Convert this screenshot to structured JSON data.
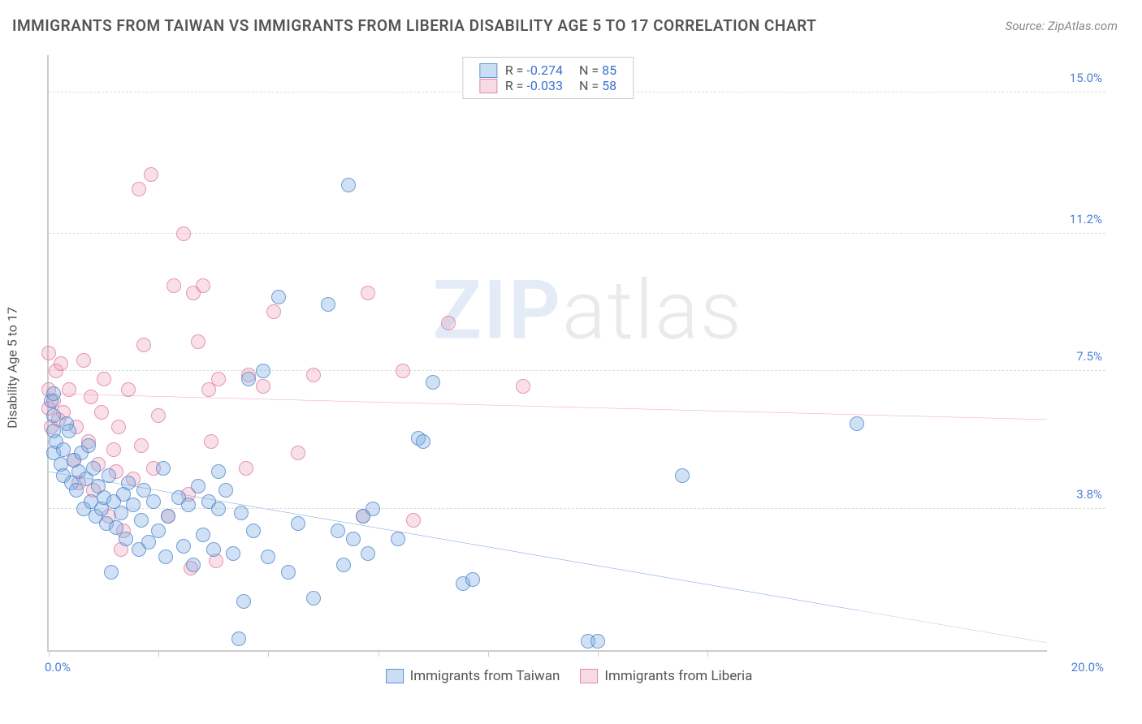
{
  "header": {
    "title": "IMMIGRANTS FROM TAIWAN VS IMMIGRANTS FROM LIBERIA DISABILITY AGE 5 TO 17 CORRELATION CHART",
    "source": "Source: ZipAtlas.com"
  },
  "watermark": {
    "zip": "ZIP",
    "atlas": "atlas"
  },
  "chart": {
    "type": "scatter",
    "ylabel": "Disability Age 5 to 17",
    "xlim": [
      0,
      20
    ],
    "ylim": [
      0,
      16
    ],
    "y_ticks": [
      3.8,
      7.5,
      11.2,
      15.0
    ],
    "y_tick_labels": [
      "3.8%",
      "7.5%",
      "11.2%",
      "15.0%"
    ],
    "x_tick_positions": [
      0,
      2.2,
      4.4,
      6.6,
      8.8,
      11.0,
      13.2
    ],
    "x_min_label": "0.0%",
    "x_max_label": "20.0%",
    "background_color": "#ffffff",
    "grid_color": "#dddddd",
    "colors": {
      "series_a_fill": "rgba(120,170,225,0.35)",
      "series_a_stroke": "#4a82c8",
      "series_b_fill": "rgba(235,150,175,0.30)",
      "series_b_stroke": "#dc6e96",
      "trend_a": "#2e6fd0",
      "trend_b": "#e37aa0",
      "axis_label": "#4a7fd6"
    },
    "marker_radius": 9,
    "trend_lines": {
      "a": {
        "y_at_xmin": 4.8,
        "y_at_xmax": 0.2,
        "solid_until_x": 16.2
      },
      "b": {
        "y_at_xmin": 6.9,
        "y_at_xmax": 6.2,
        "solid_until_x": 20.0
      }
    },
    "top_legend": {
      "rows": [
        {
          "swatch": "a",
          "r_label": "R = ",
          "r_value": "-0.274",
          "n_label": "N = ",
          "n_value": "85"
        },
        {
          "swatch": "b",
          "r_label": "R = ",
          "r_value": "-0.033",
          "n_label": "N = ",
          "n_value": "58"
        }
      ]
    },
    "bottom_legend": {
      "a": "Immigrants from Taiwan",
      "b": "Immigrants from Liberia"
    },
    "series_a": [
      [
        0.05,
        6.7
      ],
      [
        0.1,
        6.3
      ],
      [
        0.1,
        5.9
      ],
      [
        0.1,
        6.9
      ],
      [
        0.15,
        5.6
      ],
      [
        0.1,
        5.3
      ],
      [
        0.25,
        5.0
      ],
      [
        0.3,
        5.4
      ],
      [
        0.35,
        6.1
      ],
      [
        0.3,
        4.7
      ],
      [
        0.4,
        5.9
      ],
      [
        0.45,
        4.5
      ],
      [
        0.5,
        5.1
      ],
      [
        0.55,
        4.3
      ],
      [
        0.6,
        4.8
      ],
      [
        0.65,
        5.3
      ],
      [
        0.7,
        3.8
      ],
      [
        0.75,
        4.6
      ],
      [
        0.8,
        5.5
      ],
      [
        0.85,
        4.0
      ],
      [
        0.9,
        4.9
      ],
      [
        0.95,
        3.6
      ],
      [
        1.0,
        4.4
      ],
      [
        1.05,
        3.8
      ],
      [
        1.1,
        4.1
      ],
      [
        1.15,
        3.4
      ],
      [
        1.2,
        4.7
      ],
      [
        1.25,
        2.1
      ],
      [
        1.3,
        4.0
      ],
      [
        1.35,
        3.3
      ],
      [
        1.45,
        3.7
      ],
      [
        1.5,
        4.2
      ],
      [
        1.55,
        3.0
      ],
      [
        1.6,
        4.5
      ],
      [
        1.7,
        3.9
      ],
      [
        1.8,
        2.7
      ],
      [
        1.85,
        3.5
      ],
      [
        1.9,
        4.3
      ],
      [
        2.0,
        2.9
      ],
      [
        2.1,
        4.0
      ],
      [
        2.2,
        3.2
      ],
      [
        2.3,
        4.9
      ],
      [
        2.35,
        2.5
      ],
      [
        2.4,
        3.6
      ],
      [
        2.6,
        4.1
      ],
      [
        2.7,
        2.8
      ],
      [
        2.8,
        3.9
      ],
      [
        2.9,
        2.3
      ],
      [
        3.0,
        4.4
      ],
      [
        3.1,
        3.1
      ],
      [
        3.2,
        4.0
      ],
      [
        3.3,
        2.7
      ],
      [
        3.4,
        3.8
      ],
      [
        3.55,
        4.3
      ],
      [
        3.4,
        4.8
      ],
      [
        3.7,
        2.6
      ],
      [
        3.8,
        0.3
      ],
      [
        3.85,
        3.7
      ],
      [
        3.9,
        1.3
      ],
      [
        4.0,
        7.3
      ],
      [
        4.1,
        3.2
      ],
      [
        4.3,
        7.5
      ],
      [
        4.4,
        2.5
      ],
      [
        4.6,
        9.5
      ],
      [
        4.8,
        2.1
      ],
      [
        5.0,
        3.4
      ],
      [
        5.3,
        1.4
      ],
      [
        5.6,
        9.3
      ],
      [
        5.8,
        3.2
      ],
      [
        5.9,
        2.3
      ],
      [
        6.0,
        12.5
      ],
      [
        6.1,
        3.0
      ],
      [
        6.3,
        3.6
      ],
      [
        6.4,
        2.6
      ],
      [
        6.5,
        3.8
      ],
      [
        7.0,
        3.0
      ],
      [
        7.4,
        5.7
      ],
      [
        7.5,
        5.6
      ],
      [
        7.7,
        7.2
      ],
      [
        8.3,
        1.8
      ],
      [
        8.5,
        1.9
      ],
      [
        10.8,
        0.25
      ],
      [
        11.0,
        0.25
      ],
      [
        12.7,
        4.7
      ],
      [
        16.2,
        6.1
      ]
    ],
    "series_b": [
      [
        0.0,
        8.0
      ],
      [
        0.0,
        7.0
      ],
      [
        0.0,
        6.5
      ],
      [
        0.05,
        6.0
      ],
      [
        0.1,
        6.7
      ],
      [
        0.15,
        7.5
      ],
      [
        0.2,
        6.2
      ],
      [
        0.25,
        7.7
      ],
      [
        0.3,
        6.4
      ],
      [
        0.4,
        7.0
      ],
      [
        0.5,
        5.1
      ],
      [
        0.55,
        6.0
      ],
      [
        0.6,
        4.5
      ],
      [
        0.7,
        7.8
      ],
      [
        0.8,
        5.6
      ],
      [
        0.85,
        6.8
      ],
      [
        0.9,
        4.3
      ],
      [
        1.0,
        5.0
      ],
      [
        1.05,
        6.4
      ],
      [
        1.1,
        7.3
      ],
      [
        1.2,
        3.6
      ],
      [
        1.3,
        5.4
      ],
      [
        1.35,
        4.8
      ],
      [
        1.4,
        6.0
      ],
      [
        1.45,
        2.7
      ],
      [
        1.5,
        3.2
      ],
      [
        1.6,
        7.0
      ],
      [
        1.7,
        4.6
      ],
      [
        1.8,
        12.4
      ],
      [
        1.85,
        5.5
      ],
      [
        1.9,
        8.2
      ],
      [
        2.05,
        12.8
      ],
      [
        2.1,
        4.9
      ],
      [
        2.2,
        6.3
      ],
      [
        2.4,
        3.6
      ],
      [
        2.5,
        9.8
      ],
      [
        2.7,
        11.2
      ],
      [
        2.8,
        4.2
      ],
      [
        2.85,
        2.2
      ],
      [
        2.9,
        9.6
      ],
      [
        3.0,
        8.3
      ],
      [
        3.1,
        9.8
      ],
      [
        3.2,
        7.0
      ],
      [
        3.25,
        5.6
      ],
      [
        3.35,
        2.4
      ],
      [
        3.4,
        7.3
      ],
      [
        3.95,
        4.9
      ],
      [
        4.0,
        7.4
      ],
      [
        4.3,
        7.1
      ],
      [
        4.5,
        9.1
      ],
      [
        5.0,
        5.3
      ],
      [
        5.3,
        7.4
      ],
      [
        6.3,
        3.6
      ],
      [
        6.4,
        9.6
      ],
      [
        7.1,
        7.5
      ],
      [
        7.3,
        3.5
      ],
      [
        8.0,
        8.8
      ],
      [
        9.5,
        7.1
      ]
    ]
  }
}
